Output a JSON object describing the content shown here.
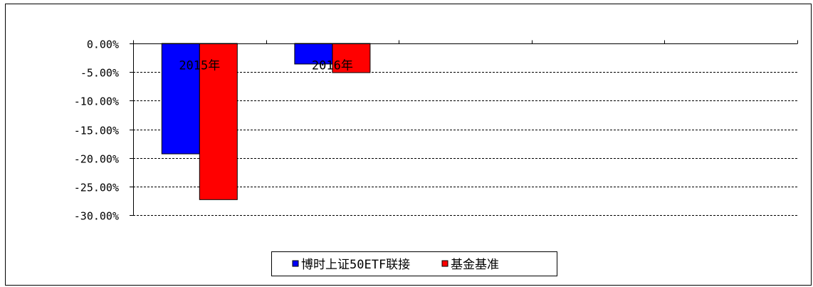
{
  "chart_data": {
    "type": "bar",
    "categories": [
      "2015年",
      "2016年",
      "",
      "",
      ""
    ],
    "series": [
      {
        "name": "博时上证50ETF联接",
        "color": "#0000ff",
        "values": [
          -19.3,
          -3.6,
          null,
          null,
          null
        ]
      },
      {
        "name": "基金基准",
        "color": "#ff0000",
        "values": [
          -27.3,
          -5.1,
          null,
          null,
          null
        ]
      }
    ],
    "yticks": [
      "0.00%",
      "-5.00%",
      "-10.00%",
      "-15.00%",
      "-20.00%",
      "-25.00%",
      "-30.00%"
    ],
    "ylim": [
      -30,
      0
    ],
    "grid": true,
    "legend_position": "bottom",
    "title": "",
    "xlabel": "",
    "ylabel": ""
  }
}
